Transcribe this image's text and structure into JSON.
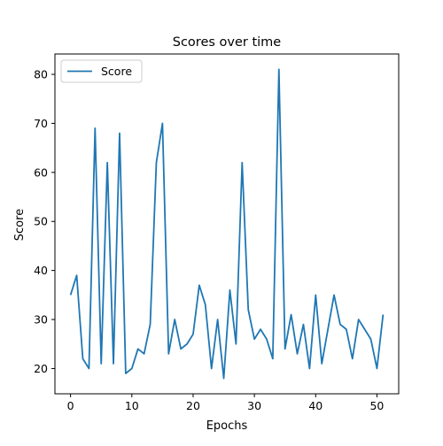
{
  "chart_data": {
    "type": "line",
    "title": "Scores over time",
    "xlabel": "Epochs",
    "ylabel": "Score",
    "xlim": [
      -2.55,
      53.55
    ],
    "ylim": [
      14.85,
      84.15
    ],
    "xticks": [
      0,
      10,
      20,
      30,
      40,
      50
    ],
    "yticks": [
      20,
      30,
      40,
      50,
      60,
      70,
      80
    ],
    "grid": false,
    "legend": "top-left",
    "x": [
      0,
      1,
      2,
      3,
      4,
      5,
      6,
      7,
      8,
      9,
      10,
      11,
      12,
      13,
      14,
      15,
      16,
      17,
      18,
      19,
      20,
      21,
      22,
      23,
      24,
      25,
      26,
      27,
      28,
      29,
      30,
      31,
      32,
      33,
      34,
      35,
      36,
      37,
      38,
      39,
      40,
      41,
      42,
      43,
      44,
      45,
      46,
      47,
      48,
      49,
      50,
      51
    ],
    "series": [
      {
        "name": "Score",
        "color": "#1f77b4",
        "values": [
          35,
          39,
          22,
          20,
          69,
          21,
          62,
          21,
          68,
          19,
          20,
          24,
          23,
          29,
          62,
          70,
          23,
          30,
          24,
          25,
          27,
          37,
          33,
          20,
          30,
          18,
          36,
          25,
          62,
          32,
          26,
          28,
          26,
          22,
          81,
          24,
          31,
          23,
          29,
          20,
          35,
          21,
          28,
          35,
          29,
          28,
          22,
          30,
          28,
          26,
          20,
          31
        ]
      }
    ]
  }
}
